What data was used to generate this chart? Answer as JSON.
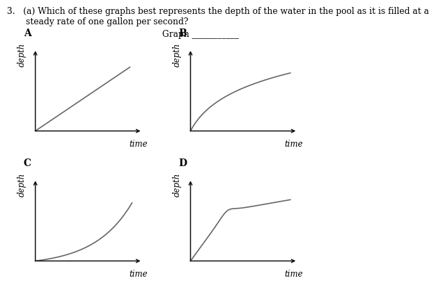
{
  "title_line1": "3.   (a) Which of these graphs best represents the depth of the water in the pool as it is filled at a",
  "title_line2": "       steady rate of one gallon per second?",
  "graph_label": "Graph",
  "labels": [
    "A",
    "B",
    "C",
    "D"
  ],
  "xlabel": "time",
  "ylabel": "depth",
  "bg_color": "#ffffff",
  "line_color": "#666666",
  "axis_color": "#111111",
  "label_fontsize": 10,
  "axis_label_fontsize": 8.5,
  "title_fontsize": 8.8,
  "graph_label_fontsize": 8.8
}
